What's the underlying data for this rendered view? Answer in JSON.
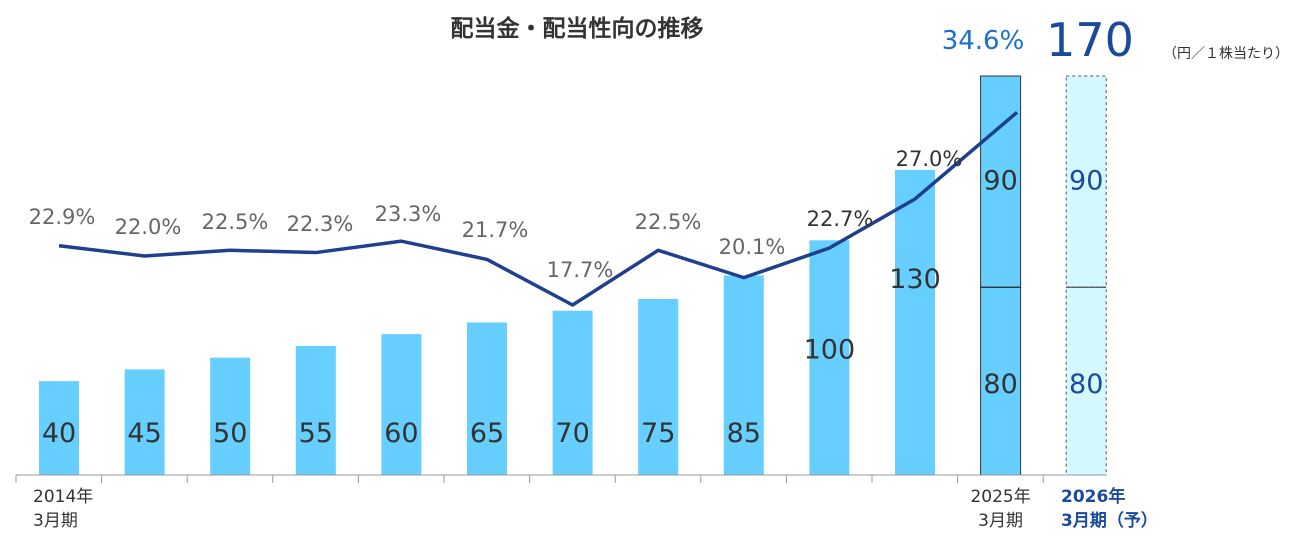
{
  "chart_data": {
    "type": "bar",
    "title": "配当金・配当性向の推移",
    "unit": "（円／１株当たり）",
    "categories": [
      "2014年3月期",
      "",
      "",
      "",
      "",
      "",
      "",
      "",
      "",
      "",
      "",
      "2025年3月期",
      "2026年3月期（予）"
    ],
    "x_tick_labels": [
      {
        "index": 0,
        "lines": [
          "2014年",
          "3月期"
        ]
      },
      {
        "index": 11,
        "lines": [
          "2025年",
          "3月期"
        ]
      },
      {
        "index": 12,
        "lines": [
          "2026年",
          "3月期（予）"
        ]
      }
    ],
    "dividends": [
      40,
      45,
      50,
      55,
      60,
      65,
      70,
      75,
      85,
      100,
      130,
      170,
      170
    ],
    "segments_last": {
      "lower": 80,
      "upper": 90
    },
    "payout_ratio_pct": [
      22.9,
      22.0,
      22.5,
      22.3,
      23.3,
      21.7,
      17.7,
      22.5,
      20.1,
      22.7,
      27.0,
      34.6
    ],
    "payout_labels": [
      "22.9%",
      "22.0%",
      "22.5%",
      "22.3%",
      "23.3%",
      "21.7%",
      "17.7%",
      "22.5%",
      "20.1%",
      "22.7%",
      "27.0%",
      "34.6%"
    ],
    "total_label_last": "170",
    "ylim": [
      0,
      170
    ],
    "colors": {
      "bar": "#66cfff",
      "bar_forecast": "#d4f8ff",
      "line": "#1f3f8f",
      "highlight": "#1a6fd0",
      "label": "#333333",
      "pct_label": "#666666",
      "forecast_text": "#1a4a9c"
    }
  }
}
